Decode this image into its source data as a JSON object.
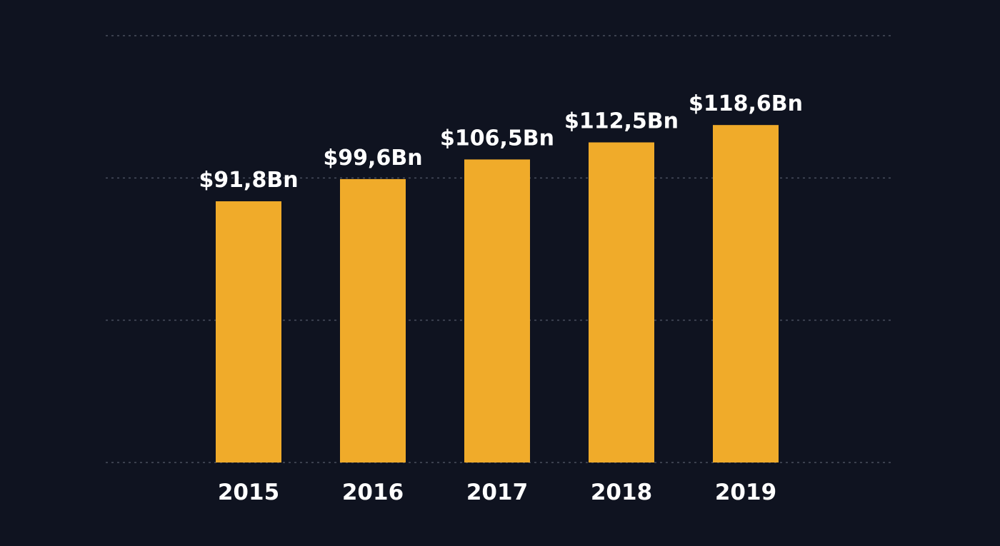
{
  "chart_data": {
    "type": "bar",
    "categories": [
      "2015",
      "2016",
      "2017",
      "2018",
      "2019"
    ],
    "values": [
      91.8,
      99.6,
      106.5,
      112.5,
      118.6
    ],
    "data_labels": [
      "$91,8Bn",
      "$99,6Bn",
      "$106,5Bn",
      "$112,5Bn",
      "$118,6Bn"
    ],
    "title": "",
    "xlabel": "",
    "ylabel": "",
    "ylim": [
      0,
      150
    ],
    "grid": true,
    "grid_values": [
      0,
      50,
      100,
      150
    ],
    "legend": "none",
    "colors": {
      "background": "#0f1320",
      "bar": "#f0ab2a",
      "text": "#ffffff",
      "grid": "#4a4f5e"
    }
  }
}
